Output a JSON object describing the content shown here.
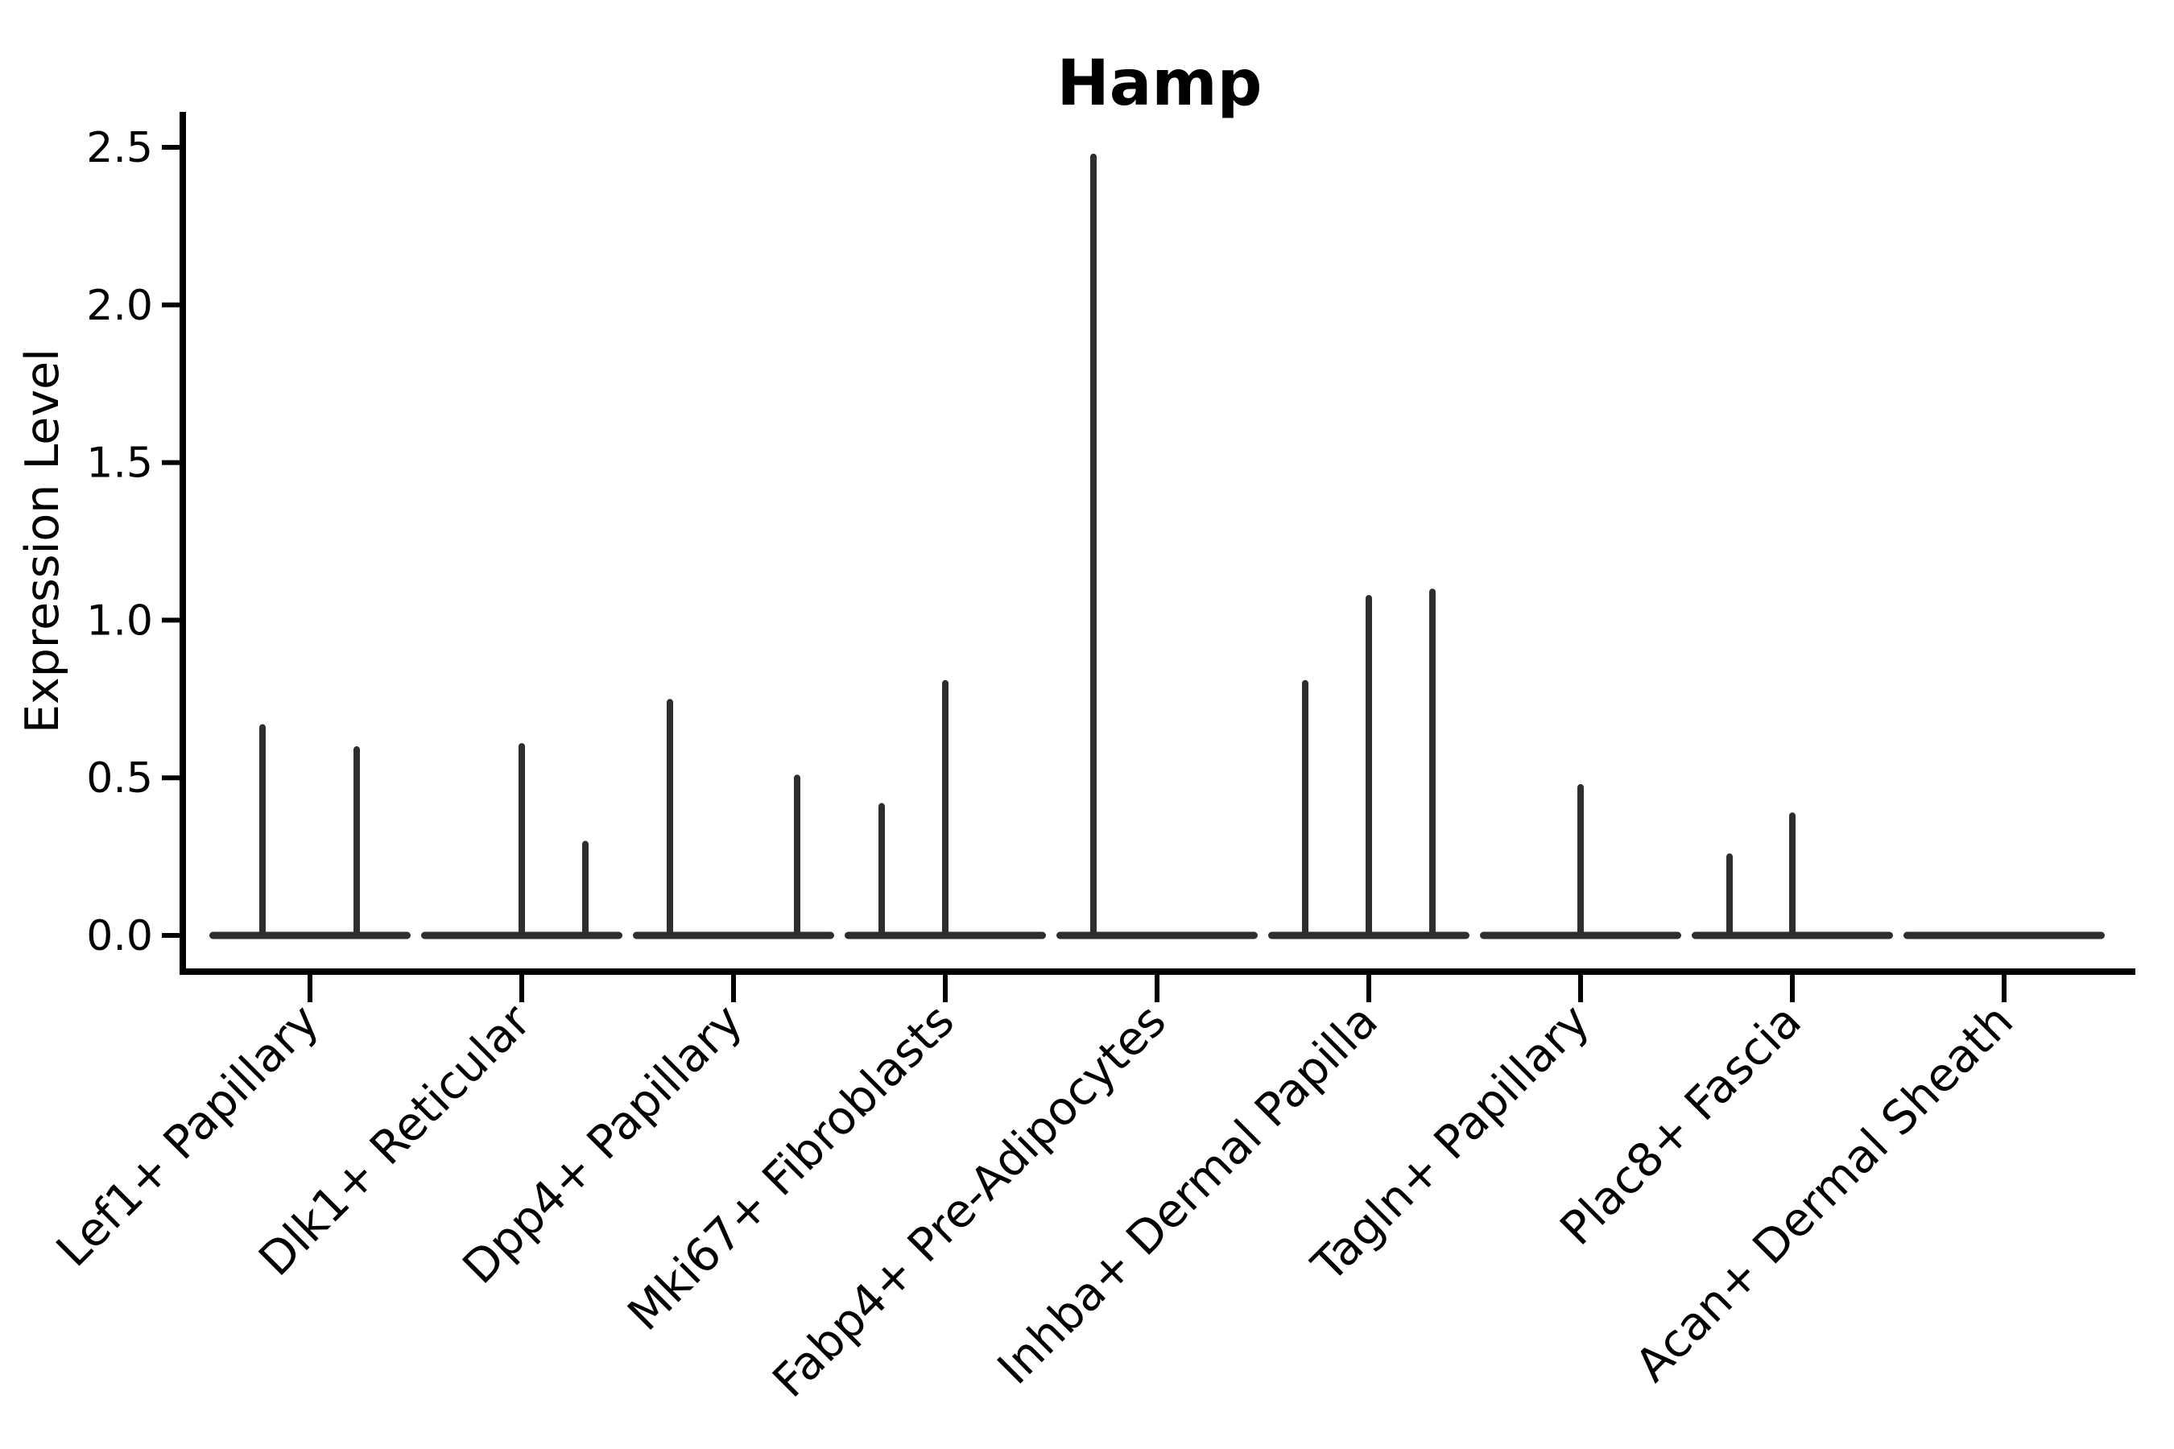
{
  "chart_data": {
    "type": "violin",
    "title": "Hamp",
    "ylabel": "Expression Level",
    "xlabel": "",
    "ylim": [
      0,
      2.5
    ],
    "yticks": [
      0.0,
      0.5,
      1.0,
      1.5,
      2.0,
      2.5
    ],
    "ytick_labels": [
      "0.0",
      "0.5",
      "1.0",
      "1.5",
      "2.0",
      "2.5"
    ],
    "grid": false,
    "legend_position": "none",
    "style_note": "Seurat/scanpy-style violin plot: each group collapses to a flat baseline at 0 with thin vertical density spikes reaching each subgroup's maximum expression",
    "categories": [
      "Lef1+ Papillary",
      "Dlk1+ Reticular",
      "Dpp4+ Papillary",
      "Mki67+ Fibroblasts",
      "Fabp4+ Pre-Adipocytes",
      "Inhba+ Dermal Papilla",
      "Tagln+ Papillary",
      "Plac8+ Fascia",
      "Acan+ Dermal Sheath"
    ],
    "violins": [
      {
        "category": "Lef1+ Papillary",
        "spikes": [
          {
            "dx": -59,
            "max": 0.67
          },
          {
            "dx": 58,
            "max": 0.6
          }
        ]
      },
      {
        "category": "Dlk1+ Reticular",
        "spikes": [
          {
            "dx": 0,
            "max": 0.61
          },
          {
            "dx": 79,
            "max": 0.3
          }
        ]
      },
      {
        "category": "Dpp4+ Papillary",
        "spikes": [
          {
            "dx": -79,
            "max": 0.75
          },
          {
            "dx": 79,
            "max": 0.51
          }
        ]
      },
      {
        "category": "Mki67+ Fibroblasts",
        "spikes": [
          {
            "dx": -79,
            "max": 0.42
          },
          {
            "dx": 0,
            "max": 0.81
          }
        ]
      },
      {
        "category": "Fabp4+ Pre-Adipocytes",
        "spikes": [
          {
            "dx": -79,
            "max": 2.48
          }
        ]
      },
      {
        "category": "Inhba+ Dermal Papilla",
        "spikes": [
          {
            "dx": -79,
            "max": 0.81
          },
          {
            "dx": 0,
            "max": 1.08
          },
          {
            "dx": 79,
            "max": 1.1
          }
        ]
      },
      {
        "category": "Tagln+ Papillary",
        "spikes": [
          {
            "dx": 0,
            "max": 0.48
          }
        ]
      },
      {
        "category": "Plac8+ Fascia",
        "spikes": [
          {
            "dx": -78,
            "max": 0.26
          },
          {
            "dx": 0,
            "max": 0.39
          }
        ]
      },
      {
        "category": "Acan+ Dermal Sheath",
        "spikes": []
      }
    ],
    "colors": {
      "violin_line": "#2e2e2e",
      "axis": "#000000",
      "text": "#000000",
      "background": "#ffffff"
    }
  }
}
